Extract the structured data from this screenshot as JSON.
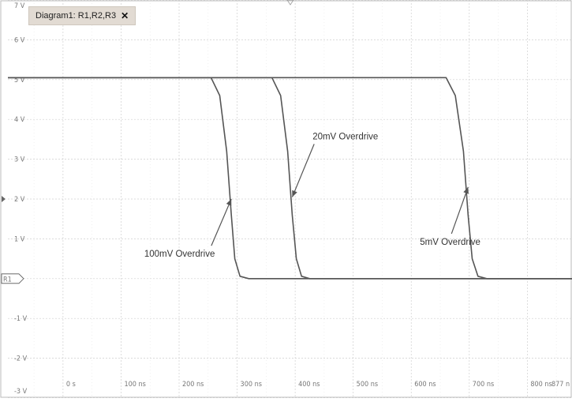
{
  "tab": {
    "label": "Diagram1: R1,R2,R3",
    "close": "✕"
  },
  "colors": {
    "trace": "#555555",
    "grid": "#cfcfcf",
    "axis_text": "#777777",
    "tab_bg": "#e2dbd3"
  },
  "chart_data": {
    "type": "line",
    "title": "",
    "xlabel": "",
    "ylabel": "",
    "xlim": [
      -95,
      877
    ],
    "ylim": [
      -3,
      7
    ],
    "y_ticks": [
      {
        "v": 7,
        "label": "7 V"
      },
      {
        "v": 6,
        "label": "6 V"
      },
      {
        "v": 5,
        "label": "5 V"
      },
      {
        "v": 4,
        "label": "4 V"
      },
      {
        "v": 3,
        "label": "3 V"
      },
      {
        "v": 2,
        "label": "2 V"
      },
      {
        "v": 1,
        "label": "1 V"
      },
      {
        "v": -1,
        "label": "-1 V"
      },
      {
        "v": -2,
        "label": "-2 V"
      },
      {
        "v": -3,
        "label": "-3 V"
      }
    ],
    "x_ticks": [
      {
        "v": 0,
        "label": "0 s"
      },
      {
        "v": 100,
        "label": "100 ns"
      },
      {
        "v": 200,
        "label": "200 ns"
      },
      {
        "v": 300,
        "label": "300 ns"
      },
      {
        "v": 400,
        "label": "400 ns"
      },
      {
        "v": 500,
        "label": "500 ns"
      },
      {
        "v": 600,
        "label": "600 ns"
      },
      {
        "v": 700,
        "label": "700 ns"
      },
      {
        "v": 800,
        "label": "800 ns"
      },
      {
        "v": 877,
        "label": "877 n"
      }
    ],
    "grid": true,
    "ground_marker": "R1",
    "trigger_level": 2,
    "series": [
      {
        "values": [
          [
            -95,
            5.05
          ],
          [
            255,
            5.05
          ],
          [
            270,
            4.6
          ],
          [
            282,
            3.2
          ],
          [
            290,
            1.6
          ],
          [
            296,
            0.5
          ],
          [
            305,
            0.06
          ],
          [
            320,
            0.0
          ],
          [
            877,
            0.0
          ]
        ]
      },
      {
        "values": [
          [
            -95,
            5.05
          ],
          [
            360,
            5.05
          ],
          [
            375,
            4.6
          ],
          [
            387,
            3.2
          ],
          [
            395,
            1.6
          ],
          [
            402,
            0.5
          ],
          [
            411,
            0.06
          ],
          [
            425,
            0.0
          ],
          [
            877,
            0.0
          ]
        ]
      },
      {
        "values": [
          [
            -95,
            5.05
          ],
          [
            660,
            5.05
          ],
          [
            676,
            4.6
          ],
          [
            690,
            3.2
          ],
          [
            698,
            1.6
          ],
          [
            705,
            0.5
          ],
          [
            715,
            0.06
          ],
          [
            730,
            0.0
          ],
          [
            877,
            0.0
          ]
        ]
      }
    ],
    "annotations": [
      {
        "text": "100mV Overdrive",
        "x": 140,
        "y": 0.55,
        "arrow_to": [
          290,
          2.0
        ]
      },
      {
        "text": "20mV Overdrive",
        "x": 430,
        "y": 3.5,
        "arrow_to": [
          395,
          2.05
        ]
      },
      {
        "text": "5mV Overdrive",
        "x": 615,
        "y": 0.85,
        "arrow_to": [
          698,
          2.3
        ]
      }
    ]
  }
}
